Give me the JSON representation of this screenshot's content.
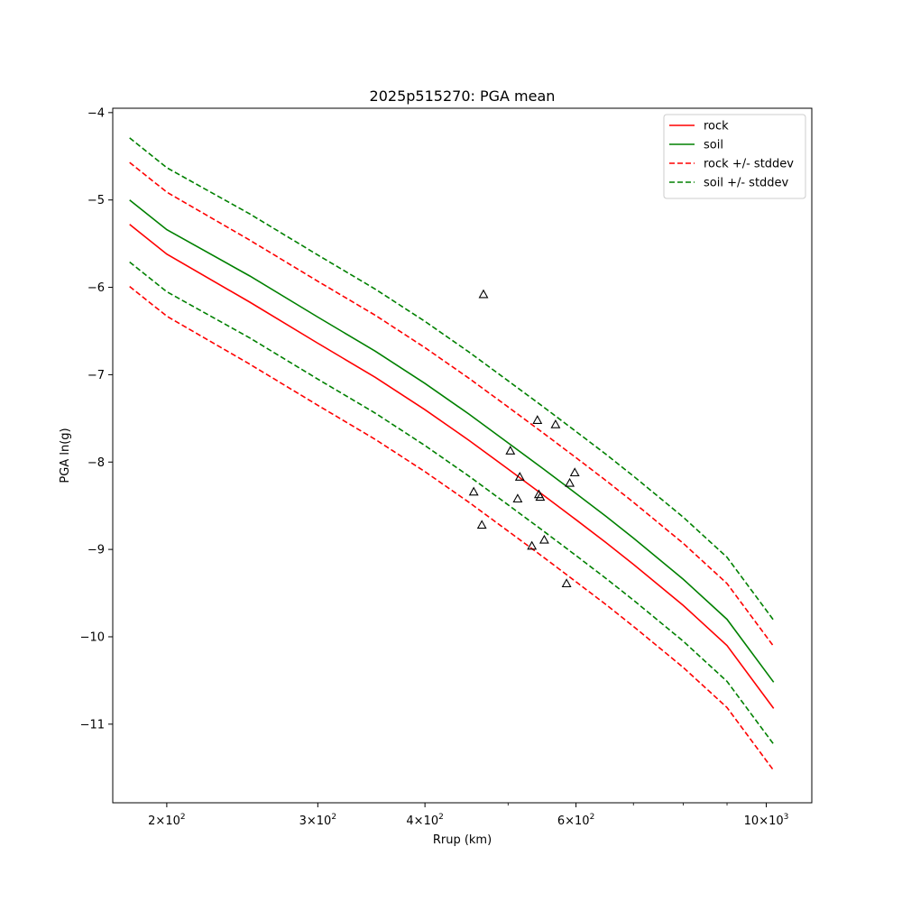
{
  "chart_data": {
    "type": "line",
    "title": "2025p515270: PGA mean",
    "xlabel": "Rrup (km)",
    "ylabel": "PGA ln(g)",
    "xscale": "log",
    "xlim": [
      173,
      1130
    ],
    "ylim": [
      -11.9,
      -3.95
    ],
    "x_ticks": [
      {
        "value": 200,
        "base": "2",
        "exp": "2"
      },
      {
        "value": 300,
        "base": "3",
        "exp": "2"
      },
      {
        "value": 400,
        "base": "4",
        "exp": "2"
      },
      {
        "value": 600,
        "base": "6",
        "exp": "2"
      },
      {
        "value": 1000,
        "base": "10",
        "exp": "3"
      }
    ],
    "x_minor_ticks": [
      500,
      700,
      800,
      900
    ],
    "y_ticks": [
      -4,
      -5,
      -6,
      -7,
      -8,
      -9,
      -10,
      -11
    ],
    "grid": false,
    "legend_position": "top-right",
    "x": [
      181,
      200,
      250,
      300,
      350,
      400,
      450,
      500,
      550,
      600,
      650,
      700,
      800,
      900,
      1020
    ],
    "series": [
      {
        "name": "rock",
        "color": "#ff0000",
        "style": "solid",
        "values": [
          -5.28,
          -5.62,
          -6.17,
          -6.64,
          -7.03,
          -7.4,
          -7.75,
          -8.08,
          -8.38,
          -8.66,
          -8.92,
          -9.17,
          -9.64,
          -10.1,
          -10.82
        ]
      },
      {
        "name": "soil",
        "color": "#008000",
        "style": "solid",
        "values": [
          -5.0,
          -5.34,
          -5.87,
          -6.34,
          -6.73,
          -7.1,
          -7.45,
          -7.78,
          -8.08,
          -8.36,
          -8.62,
          -8.87,
          -9.34,
          -9.8,
          -10.52
        ]
      },
      {
        "name": "rock +/- stddev",
        "color": "#ff0000",
        "style": "dashed",
        "values": [
          -4.57,
          -4.91,
          -5.46,
          -5.93,
          -6.32,
          -6.69,
          -7.04,
          -7.37,
          -7.67,
          -7.95,
          -8.21,
          -8.46,
          -8.93,
          -9.39,
          -10.11
        ]
      },
      {
        "name": "",
        "color": "#ff0000",
        "style": "dashed",
        "values": [
          -5.99,
          -6.33,
          -6.88,
          -7.35,
          -7.74,
          -8.11,
          -8.46,
          -8.79,
          -9.09,
          -9.37,
          -9.63,
          -9.88,
          -10.35,
          -10.81,
          -11.53
        ]
      },
      {
        "name": "soil +/- stddev",
        "color": "#008000",
        "style": "dashed",
        "values": [
          -4.29,
          -4.63,
          -5.16,
          -5.63,
          -6.02,
          -6.39,
          -6.74,
          -7.07,
          -7.37,
          -7.65,
          -7.91,
          -8.16,
          -8.63,
          -9.09,
          -9.81
        ]
      },
      {
        "name": "",
        "color": "#008000",
        "style": "dashed",
        "values": [
          -5.71,
          -6.05,
          -6.58,
          -7.05,
          -7.44,
          -7.81,
          -8.16,
          -8.49,
          -8.79,
          -9.07,
          -9.33,
          -9.58,
          -10.05,
          -10.51,
          -11.23
        ]
      }
    ],
    "observations": {
      "marker": "triangle",
      "points": [
        {
          "x": 468,
          "y": -6.08
        },
        {
          "x": 456,
          "y": -8.34
        },
        {
          "x": 466,
          "y": -8.72
        },
        {
          "x": 503,
          "y": -7.87
        },
        {
          "x": 513,
          "y": -8.42
        },
        {
          "x": 516,
          "y": -8.17
        },
        {
          "x": 541,
          "y": -7.52
        },
        {
          "x": 533,
          "y": -8.96
        },
        {
          "x": 543,
          "y": -8.37
        },
        {
          "x": 545,
          "y": -8.4
        },
        {
          "x": 551,
          "y": -8.89
        },
        {
          "x": 568,
          "y": -7.57
        },
        {
          "x": 585,
          "y": -9.39
        },
        {
          "x": 590,
          "y": -8.24
        },
        {
          "x": 598,
          "y": -8.12
        }
      ]
    }
  }
}
